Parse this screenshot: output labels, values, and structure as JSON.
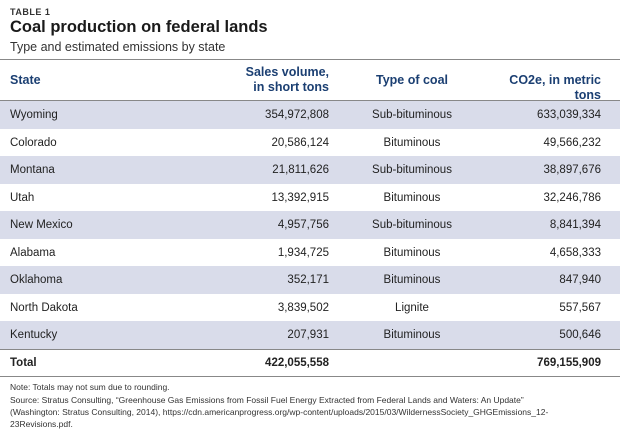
{
  "table_label": "TABLE 1",
  "title": "Coal production on federal lands",
  "subtitle": "Type and estimated emissions by state",
  "headers": {
    "state": "State",
    "sales_line1": "Sales volume,",
    "sales_line2": "in short tons",
    "type": "Type of coal",
    "co2": "CO2e, in metric tons"
  },
  "rows": [
    {
      "state": "Wyoming",
      "sales": "354,972,808",
      "type": "Sub-bituminous",
      "co2": "633,039,334"
    },
    {
      "state": "Colorado",
      "sales": "20,586,124",
      "type": "Bituminous",
      "co2": "49,566,232"
    },
    {
      "state": "Montana",
      "sales": "21,811,626",
      "type": "Sub-bituminous",
      "co2": "38,897,676"
    },
    {
      "state": "Utah",
      "sales": "13,392,915",
      "type": "Bituminous",
      "co2": "32,246,786"
    },
    {
      "state": "New Mexico",
      "sales": "4,957,756",
      "type": "Sub-bituminous",
      "co2": "8,841,394"
    },
    {
      "state": "Alabama",
      "sales": "1,934,725",
      "type": "Bituminous",
      "co2": "4,658,333"
    },
    {
      "state": "Oklahoma",
      "sales": "352,171",
      "type": "Bituminous",
      "co2": "847,940"
    },
    {
      "state": "North Dakota",
      "sales": "3,839,502",
      "type": "Lignite",
      "co2": "557,567"
    },
    {
      "state": "Kentucky",
      "sales": "207,931",
      "type": "Bituminous",
      "co2": "500,646"
    }
  ],
  "total": {
    "label": "Total",
    "sales": "422,055,558",
    "co2": "769,155,909"
  },
  "note": "Note: Totals may not sum due to rounding.",
  "source_line1": "Source: Stratus Consulting, “Greenhouse Gas Emissions from Fossil Fuel Energy Extracted from Federal Lands and Waters: An Update”",
  "source_line2": "(Washington: Stratus Consulting, 2014), https://cdn.americanprogress.org/wp-content/uploads/2015/03/WildernessSociety_GHGEmissions_12-",
  "source_line3": "23Revisions.pdf.",
  "colors": {
    "header_text": "#1b3f72",
    "shaded_row": "#d9dcea"
  }
}
